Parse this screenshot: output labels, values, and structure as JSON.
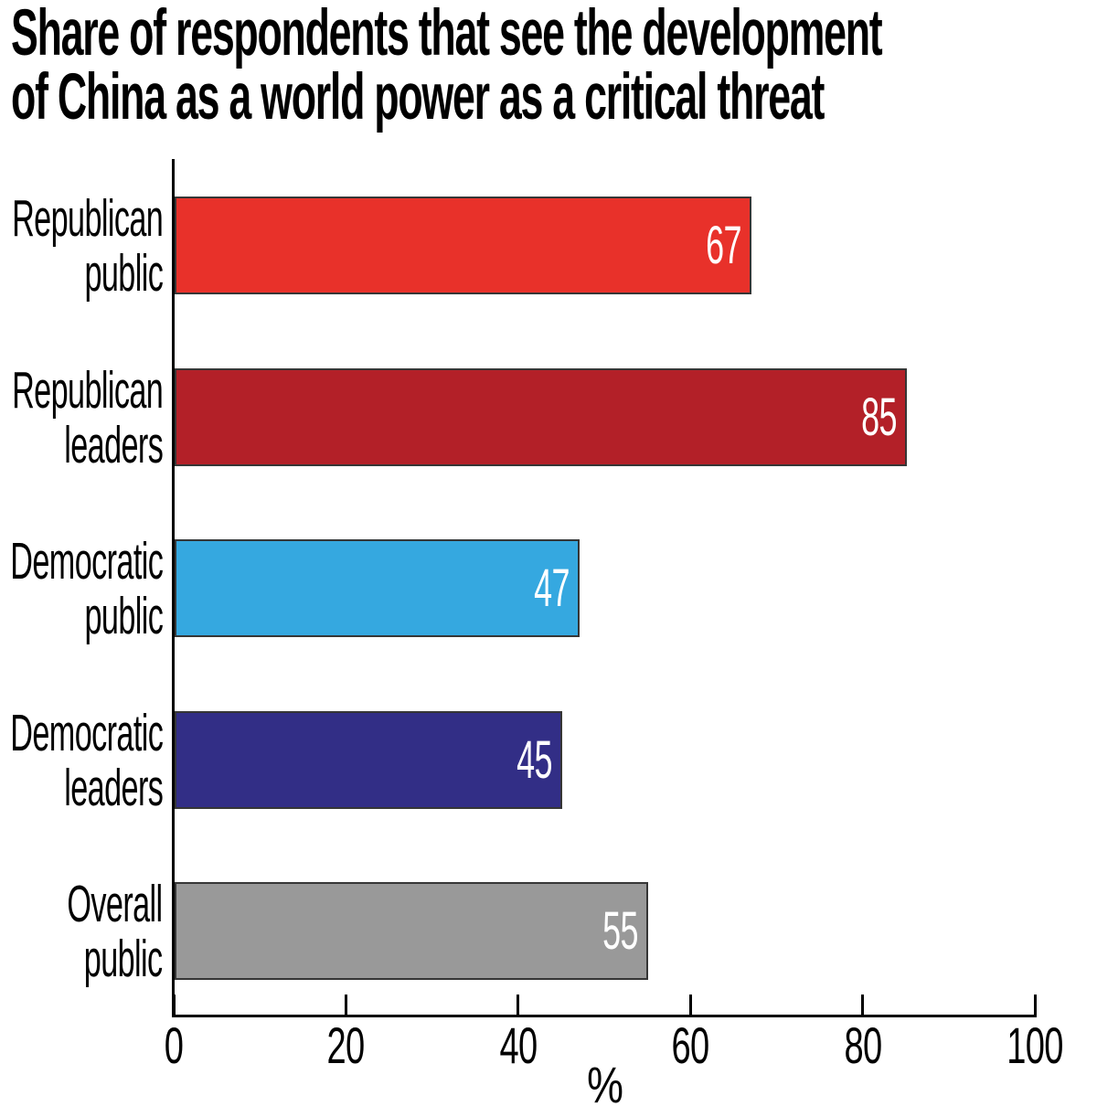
{
  "chart_data": {
    "type": "bar",
    "orientation": "horizontal",
    "title": "Share of respondents that see the development of China as a world power as a critical threat",
    "title_lines": [
      "Share of respondents that see the development",
      "of China as a world power as a critical threat"
    ],
    "categories": [
      "Republican public",
      "Republican leaders",
      "Democratic public",
      "Democratic leaders",
      "Overall public"
    ],
    "values": [
      67,
      85,
      47,
      45,
      55
    ],
    "bar_colors": [
      "#e8312a",
      "#b32028",
      "#35a8e0",
      "#322e86",
      "#999999"
    ],
    "xlabel": "%",
    "xlim": [
      0,
      100
    ],
    "xticks": [
      0,
      20,
      40,
      60,
      80,
      100
    ],
    "grid": false,
    "legend": false,
    "value_label_position": "inside-right",
    "value_label_color": "#ffffff",
    "axis_color": "#000000",
    "bar_border_color": "#363636",
    "rows": [
      {
        "label_lines": [
          "Republican",
          "public"
        ],
        "value": 67,
        "color": "#e8312a"
      },
      {
        "label_lines": [
          "Republican",
          "leaders"
        ],
        "value": 85,
        "color": "#b32028"
      },
      {
        "label_lines": [
          "Democratic",
          "public"
        ],
        "value": 47,
        "color": "#35a8e0"
      },
      {
        "label_lines": [
          "Democratic",
          "leaders"
        ],
        "value": 45,
        "color": "#322e86"
      },
      {
        "label_lines": [
          "Overall",
          "public"
        ],
        "value": 55,
        "color": "#999999"
      }
    ]
  }
}
